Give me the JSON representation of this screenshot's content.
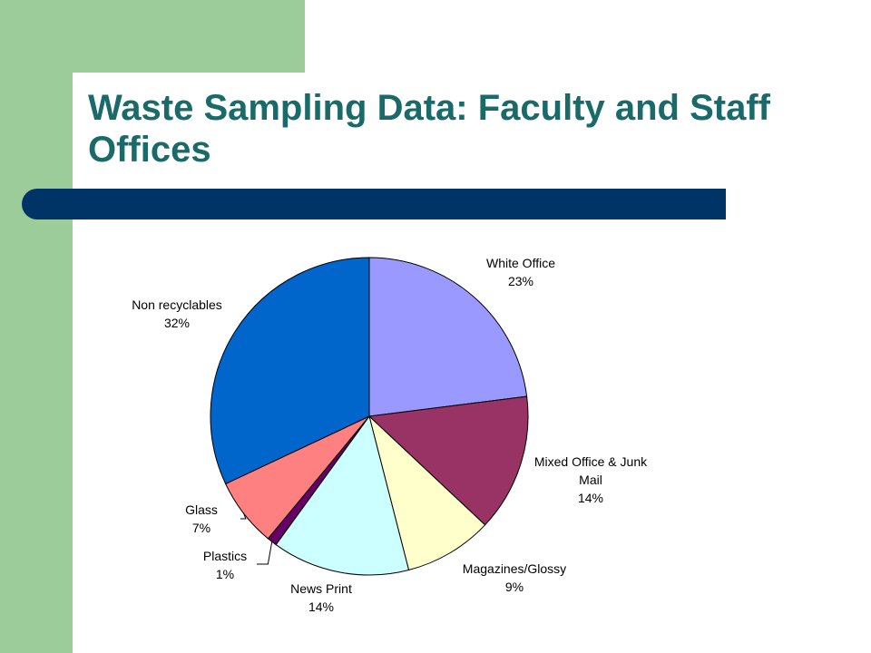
{
  "slide": {
    "title": "Waste Sampling Data: Faculty and Staff Offices"
  },
  "colors": {
    "sidebar": "#9ccc99",
    "title": "#1a6a6a",
    "underline": "#003366"
  },
  "chart_data": {
    "type": "pie",
    "title": "",
    "start_angle_deg": 90,
    "direction": "clockwise",
    "slices": [
      {
        "name": "White Office",
        "value": 23,
        "label": "23%",
        "color": "#9999ff",
        "label_lines": [
          "White Office"
        ]
      },
      {
        "name": "Mixed Office & Junk Mail",
        "value": 14,
        "label": "14%",
        "color": "#993366",
        "label_lines": [
          "Mixed Office & Junk",
          "Mail"
        ]
      },
      {
        "name": "Magazines/Glossy",
        "value": 9,
        "label": "9%",
        "color": "#ffffcc",
        "label_lines": [
          "Magazines/Glossy"
        ]
      },
      {
        "name": "News Print",
        "value": 14,
        "label": "14%",
        "color": "#ccffff",
        "label_lines": [
          "News Print"
        ]
      },
      {
        "name": "Plastics",
        "value": 1,
        "label": "1%",
        "color": "#660066",
        "label_lines": [
          "Plastics"
        ]
      },
      {
        "name": "Glass",
        "value": 7,
        "label": "7%",
        "color": "#ff8080",
        "label_lines": [
          "Glass"
        ]
      },
      {
        "name": "Non recyclables",
        "value": 32,
        "label": "32%",
        "color": "#0066cc",
        "label_lines": [
          "Non recyclables"
        ]
      }
    ]
  }
}
